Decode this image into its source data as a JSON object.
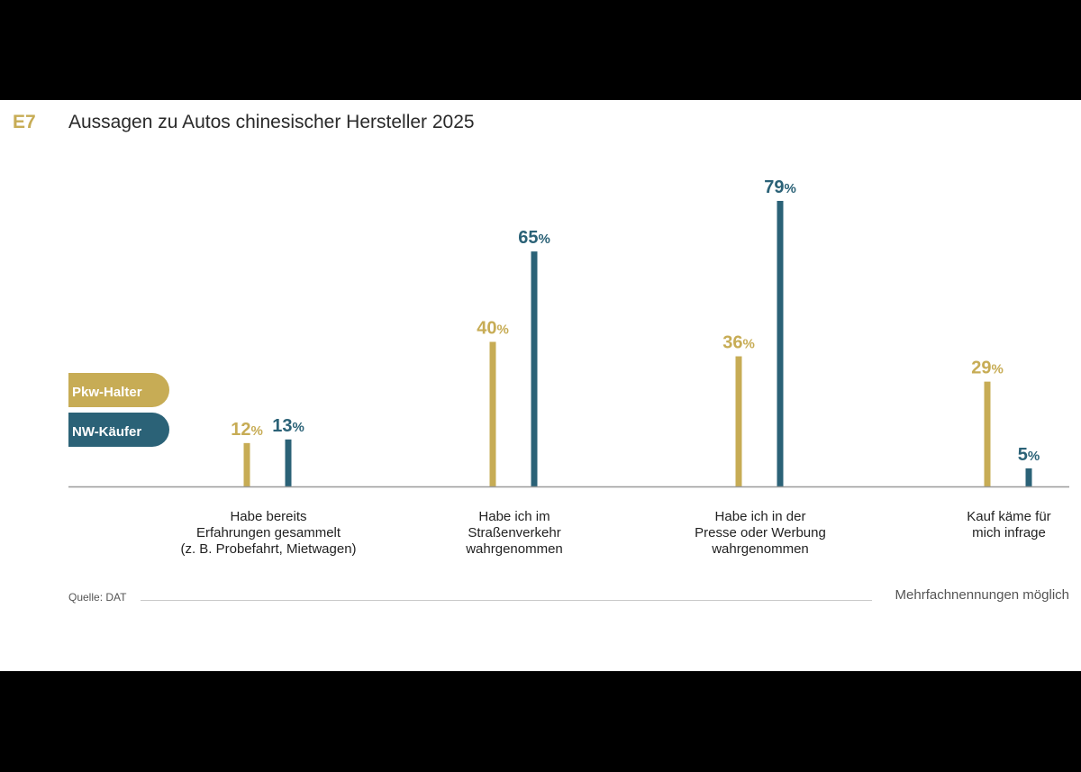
{
  "header": {
    "code": "E7",
    "title": "Aussagen zu Autos chinesischer Hersteller 2025"
  },
  "legend": {
    "series1": "Pkw-Halter",
    "series2": "NW-Käufer"
  },
  "colors": {
    "pkw_halter": "#c7ac55",
    "nw_kaeufer": "#2b6277",
    "axis": "#9a9a9a"
  },
  "footer": {
    "source": "Quelle: DAT",
    "note": "Mehrfachnennungen möglich"
  },
  "chart_data": {
    "type": "bar",
    "title": "Aussagen zu Autos chinesischer Hersteller 2025",
    "categories": [
      "Habe bereits\nErfahrungen gesammelt\n(z. B. Probefahrt, Mietwagen)",
      "Habe ich im\nStraßenverkehr\nwahrgenommen",
      "Habe ich in der\nPresse oder Werbung\nwahrgenommen",
      "Kauf käme für\nmich infrage"
    ],
    "series": [
      {
        "name": "Pkw-Halter",
        "values": [
          12,
          40,
          36,
          29
        ]
      },
      {
        "name": "NW-Käufer",
        "values": [
          13,
          65,
          79,
          5
        ]
      }
    ],
    "unit": "%",
    "ylim": [
      0,
      80
    ],
    "grid": false,
    "legend_position": "left"
  }
}
